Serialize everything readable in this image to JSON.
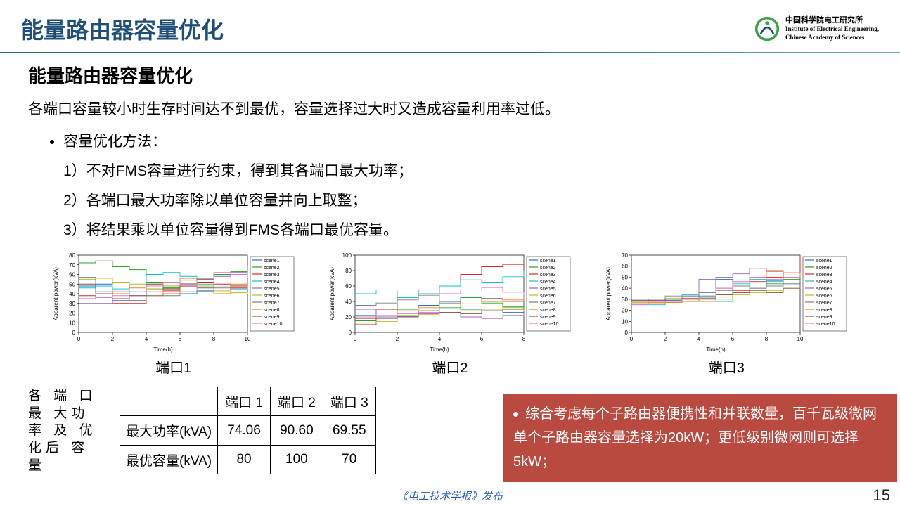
{
  "header": {
    "title": "能量路由器容量优化",
    "org_cn": "中国科学院电工研究所",
    "org_en1": "Institute of Electrical Engineering,",
    "org_en2": "Chinese Academy of Sciences"
  },
  "section": {
    "subtitle": "能量路由器容量优化",
    "lead": "各端口容量较小时生存时间达不到最优，容量选择过大时又造成容量利用率过低。",
    "method_label": "容量优化方法：",
    "steps": [
      "不对FMS容量进行约束，得到其各端口最大功率；",
      "各端口最大功率除以单位容量并向上取整；",
      "将结果乘以单位容量得到FMS各端口最优容量。"
    ]
  },
  "charts": [
    {
      "caption": "端口1",
      "xlabel": "Time(h)",
      "ylabel": "Apparent power(kVA)",
      "xlim": [
        0,
        10
      ],
      "ylim": [
        0,
        80
      ],
      "xtick_step": 2,
      "ytick_step": 10
    },
    {
      "caption": "端口2",
      "xlabel": "Time(h)",
      "ylabel": "Apparent power(kVA)",
      "xlim": [
        0,
        8
      ],
      "ylim": [
        0,
        100
      ],
      "xtick_step": 2,
      "ytick_step": 20
    },
    {
      "caption": "端口3",
      "xlabel": "Time(h)",
      "ylabel": "Apparent power(kVA)",
      "xlim": [
        0,
        10
      ],
      "ylim": [
        0,
        70
      ],
      "xtick_step": 2,
      "ytick_step": 10
    }
  ],
  "legend_items": [
    "scene1",
    "scene2",
    "scene3",
    "scene4",
    "scene5",
    "scene6",
    "scene7",
    "scene8",
    "scene9",
    "scene10"
  ],
  "series_colors": [
    "#1f77b4",
    "#2ca02c",
    "#d62728",
    "#17becf",
    "#9467bd",
    "#bcbd22",
    "#7f7f7f",
    "#ff7f0e",
    "#8c564b",
    "#e377c2"
  ],
  "chart_series": {
    "0": [
      [
        48,
        50,
        52,
        44,
        45,
        46,
        40,
        43,
        47,
        49,
        52
      ],
      [
        72,
        74,
        68,
        65,
        52,
        46,
        50,
        55,
        60,
        63,
        65
      ],
      [
        38,
        36,
        30,
        30,
        38,
        43,
        47,
        52,
        50,
        46,
        48
      ],
      [
        46,
        48,
        45,
        42,
        60,
        62,
        58,
        50,
        47,
        45,
        68
      ],
      [
        30,
        30,
        33,
        38,
        42,
        49,
        51,
        55,
        58,
        62,
        66
      ],
      [
        55,
        56,
        52,
        50,
        45,
        48,
        54,
        48,
        43,
        41,
        40
      ],
      [
        57,
        42,
        35,
        33,
        38,
        38,
        42,
        42,
        46,
        44,
        48
      ],
      [
        44,
        44,
        40,
        46,
        50,
        40,
        56,
        56,
        40,
        50,
        52
      ],
      [
        50,
        40,
        42,
        38,
        50,
        45,
        48,
        46,
        44,
        48,
        60
      ],
      [
        35,
        36,
        38,
        44,
        48,
        52,
        50,
        44,
        62,
        60,
        56
      ]
    ],
    "1": [
      [
        22,
        20,
        21,
        35,
        40,
        30,
        28,
        26,
        30
      ],
      [
        15,
        25,
        30,
        28,
        32,
        45,
        38,
        33,
        35
      ],
      [
        10,
        30,
        45,
        55,
        60,
        75,
        85,
        88,
        90
      ],
      [
        50,
        55,
        45,
        50,
        60,
        68,
        65,
        72,
        80
      ],
      [
        30,
        20,
        22,
        24,
        26,
        20,
        18,
        22,
        25
      ],
      [
        12,
        14,
        22,
        23,
        25,
        28,
        30,
        32,
        28
      ],
      [
        35,
        38,
        42,
        48,
        38,
        46,
        44,
        40,
        48
      ],
      [
        25,
        25,
        28,
        32,
        34,
        37,
        40,
        42,
        44
      ],
      [
        18,
        18,
        20,
        28,
        26,
        24,
        28,
        30,
        33
      ],
      [
        20,
        22,
        24,
        26,
        50,
        55,
        58,
        52,
        48
      ]
    ],
    "2": [
      [
        28,
        30,
        29,
        30,
        33,
        48,
        45,
        43,
        47,
        50,
        52
      ],
      [
        26,
        26,
        28,
        28,
        30,
        34,
        36,
        40,
        44,
        48,
        46
      ],
      [
        30,
        28,
        27,
        30,
        32,
        40,
        38,
        46,
        50,
        54,
        70
      ],
      [
        25,
        25,
        30,
        34,
        36,
        28,
        44,
        48,
        46,
        44,
        42
      ],
      [
        28,
        28,
        30,
        33,
        48,
        50,
        53,
        58,
        56,
        52,
        49
      ],
      [
        27,
        29,
        31,
        30,
        32,
        30,
        34,
        36,
        38,
        40,
        42
      ],
      [
        30,
        30,
        33,
        33,
        36,
        38,
        42,
        40,
        42,
        44,
        44
      ],
      [
        26,
        27,
        27,
        28,
        28,
        32,
        36,
        50,
        55,
        54,
        50
      ],
      [
        29,
        29,
        30,
        31,
        31,
        34,
        36,
        38,
        36,
        40,
        46
      ],
      [
        25,
        26,
        28,
        30,
        32,
        40,
        46,
        50,
        48,
        50,
        50
      ]
    ]
  },
  "table": {
    "side_label": "各 端 口 最 大功 率 及 优 化后 容 量",
    "columns": [
      "",
      "端口 1",
      "端口 2",
      "端口 3"
    ],
    "rows": [
      [
        "最大功率(kVA)",
        "74.06",
        "90.60",
        "69.55"
      ],
      [
        "最优容量(kVA)",
        "80",
        "100",
        "70"
      ]
    ]
  },
  "callout": "综合考虑每个子路由器便携性和并联数量，百千瓦级微网单个子路由器容量选择为20kW；更低级别微网则可选择5kW；",
  "footer": "《电工技术学报》发布",
  "page": "15",
  "colors": {
    "title": "#1f4e79",
    "hr": "#2e7d5f",
    "callout_bg": "#b94a3f",
    "logo": "#3fa24a",
    "footer": "#2a5bb8"
  }
}
